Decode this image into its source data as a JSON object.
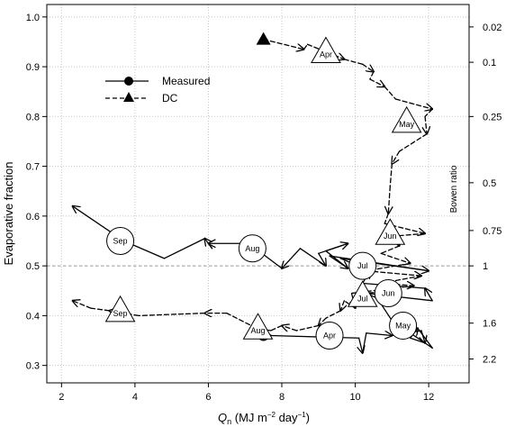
{
  "chart_data": {
    "type": "line",
    "title": "",
    "xlabel": {
      "symbol": "Q",
      "sub": "n",
      "units_prefix": " (MJ m",
      "exp1": "−2",
      "units_mid": " day",
      "exp2": "−1",
      "units_suffix": ")"
    },
    "ylabel": "Evaporative fraction",
    "y2label": "Bowen ratio",
    "xlim": [
      1.6,
      13.1
    ],
    "ylim": [
      0.265,
      1.025
    ],
    "x_ticks": [
      2,
      4,
      6,
      8,
      10,
      12
    ],
    "y_ticks": [
      0.3,
      0.4,
      0.5,
      0.6,
      0.7,
      0.8,
      0.9,
      1.0
    ],
    "y_tick_labels": [
      "0.3",
      "0.4",
      "0.5",
      "0.6",
      "0.7",
      "0.8",
      "0.9",
      "1.0"
    ],
    "bowen_ticks": [
      {
        "label": "0.02",
        "ef": 0.98
      },
      {
        "label": "0.1",
        "ef": 0.909
      },
      {
        "label": "0.25",
        "ef": 0.8
      },
      {
        "label": "0.5",
        "ef": 0.667
      },
      {
        "label": "0.75",
        "ef": 0.571
      },
      {
        "label": "1",
        "ef": 0.5
      },
      {
        "label": "1.6",
        "ef": 0.385
      },
      {
        "label": "2.2",
        "ef": 0.313
      }
    ],
    "grid": true,
    "reference_line": {
      "y": 0.5,
      "style": "dashed"
    },
    "legend": {
      "position": "upper-left",
      "entries": [
        {
          "label": "Measured",
          "marker": "circle",
          "line": "solid"
        },
        {
          "label": "DC",
          "marker": "triangle",
          "line": "dashed"
        }
      ]
    },
    "series": [
      {
        "name": "Measured",
        "style": "solid",
        "marker_start": "circle",
        "points": [
          [
            7.5,
            0.36
          ],
          [
            7.7,
            0.36
          ],
          [
            10.1,
            0.355
          ],
          [
            10.2,
            0.325
          ],
          [
            10.3,
            0.365
          ],
          [
            11.0,
            0.36
          ],
          [
            11.8,
            0.37
          ],
          [
            11.9,
            0.345
          ],
          [
            11.5,
            0.355
          ],
          [
            11.7,
            0.375
          ],
          [
            12.1,
            0.335
          ],
          [
            11.0,
            0.39
          ],
          [
            10.6,
            0.435
          ],
          [
            10.3,
            0.445
          ],
          [
            12.1,
            0.43
          ],
          [
            11.9,
            0.455
          ],
          [
            10.2,
            0.465
          ],
          [
            10.4,
            0.49
          ],
          [
            9.6,
            0.515
          ],
          [
            12.0,
            0.49
          ],
          [
            9.3,
            0.52
          ],
          [
            9.8,
            0.495
          ],
          [
            9.2,
            0.53
          ],
          [
            9.8,
            0.545
          ],
          [
            9.0,
            0.525
          ],
          [
            9.2,
            0.5
          ],
          [
            8.5,
            0.535
          ],
          [
            8.0,
            0.495
          ],
          [
            7.1,
            0.545
          ],
          [
            6.0,
            0.545
          ],
          [
            6.1,
            0.535
          ],
          [
            5.9,
            0.555
          ],
          [
            4.8,
            0.515
          ],
          [
            3.7,
            0.55
          ],
          [
            2.3,
            0.62
          ]
        ]
      },
      {
        "name": "DC",
        "style": "dashed",
        "marker_start": "triangle",
        "points": [
          [
            7.5,
            0.955
          ],
          [
            8.6,
            0.935
          ],
          [
            8.7,
            0.945
          ],
          [
            9.7,
            0.915
          ],
          [
            10.2,
            0.905
          ],
          [
            10.5,
            0.89
          ],
          [
            10.4,
            0.875
          ],
          [
            10.8,
            0.86
          ],
          [
            11.1,
            0.835
          ],
          [
            12.1,
            0.815
          ],
          [
            11.9,
            0.8
          ],
          [
            11.95,
            0.765
          ],
          [
            11.2,
            0.73
          ],
          [
            11.0,
            0.705
          ],
          [
            10.95,
            0.66
          ],
          [
            10.9,
            0.605
          ],
          [
            10.8,
            0.585
          ],
          [
            11.9,
            0.565
          ],
          [
            11.1,
            0.56
          ],
          [
            11.2,
            0.54
          ],
          [
            10.7,
            0.525
          ],
          [
            11.5,
            0.505
          ],
          [
            10.3,
            0.49
          ],
          [
            11.8,
            0.48
          ],
          [
            10.7,
            0.465
          ],
          [
            11.6,
            0.46
          ],
          [
            9.9,
            0.445
          ],
          [
            10.0,
            0.415
          ],
          [
            9.7,
            0.43
          ],
          [
            9.6,
            0.41
          ],
          [
            9.2,
            0.395
          ],
          [
            9.0,
            0.38
          ],
          [
            8.4,
            0.37
          ],
          [
            8.0,
            0.38
          ],
          [
            7.7,
            0.37
          ],
          [
            7.3,
            0.375
          ],
          [
            6.5,
            0.405
          ],
          [
            5.9,
            0.405
          ],
          [
            4.1,
            0.4
          ],
          [
            3.3,
            0.41
          ],
          [
            2.8,
            0.415
          ],
          [
            2.3,
            0.43
          ]
        ]
      }
    ],
    "measured_months": [
      {
        "label": "Sep",
        "x": 3.6,
        "y": 0.55
      },
      {
        "label": "Aug",
        "x": 7.2,
        "y": 0.535
      },
      {
        "label": "Jul",
        "x": 10.2,
        "y": 0.5
      },
      {
        "label": "Jun",
        "x": 10.9,
        "y": 0.445
      },
      {
        "label": "May",
        "x": 11.3,
        "y": 0.38
      },
      {
        "label": "Apr",
        "x": 9.3,
        "y": 0.36
      }
    ],
    "dc_months": [
      {
        "label": "Apr",
        "x": 9.2,
        "y": 0.93
      },
      {
        "label": "May",
        "x": 11.4,
        "y": 0.79
      },
      {
        "label": "Jun",
        "x": 10.95,
        "y": 0.565
      },
      {
        "label": "Jul",
        "x": 10.2,
        "y": 0.44
      },
      {
        "label": "Aug",
        "x": 7.35,
        "y": 0.375
      },
      {
        "label": "Sep",
        "x": 3.6,
        "y": 0.41
      }
    ]
  }
}
